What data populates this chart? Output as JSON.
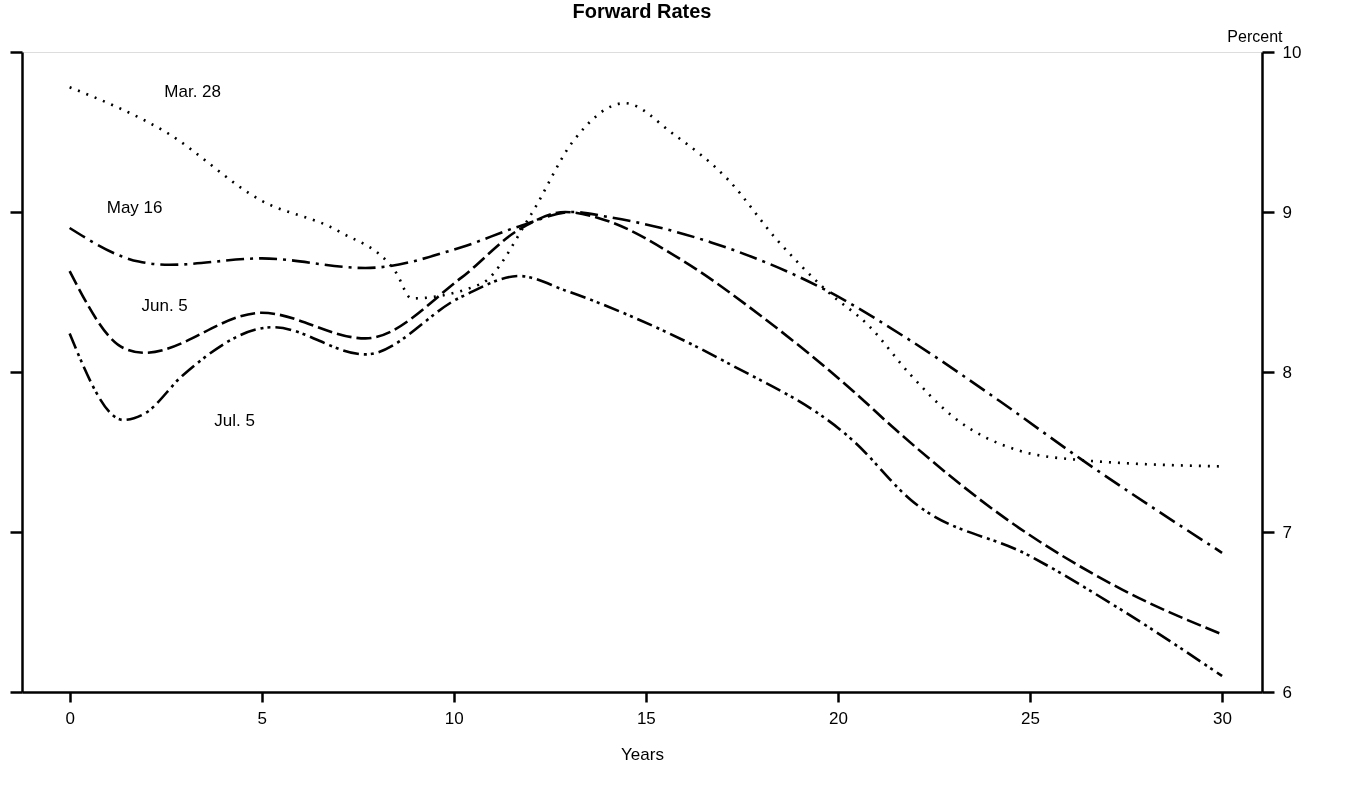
{
  "chart_data": {
    "type": "line",
    "title": "Forward Rates",
    "xlabel": "Years",
    "ylabel": "Percent",
    "xlim": [
      -1.24,
      31.04
    ],
    "xticks": [
      0,
      5,
      10,
      15,
      20,
      25,
      30
    ],
    "ylim": [
      6,
      10
    ],
    "yticks": [
      6,
      7,
      8,
      9,
      10
    ],
    "grid": false,
    "marker": "none",
    "tick_labels": "xy2",
    "series": [
      {
        "name": "Mar. 28",
        "color": "#000000",
        "line_style": "dotted",
        "x": [
          0,
          2.5,
          5,
          7,
          8.5,
          8.9,
          10.7,
          12.0,
          13.1,
          14.45,
          15.7,
          17.15,
          18.4,
          19.7,
          20.8,
          21.9,
          23.0,
          24.7,
          26.3,
          30
        ],
        "values": [
          9.78,
          9.5,
          9.07,
          8.88,
          8.62,
          8.46,
          8.55,
          8.98,
          9.44,
          9.68,
          9.49,
          9.2,
          8.83,
          8.51,
          8.29,
          7.98,
          7.72,
          7.51,
          7.45,
          7.41
        ]
      },
      {
        "name": "May 16",
        "color": "#000000",
        "line_style": "dashdot",
        "x": [
          0,
          1.8,
          2.6,
          5.0,
          7.7,
          10.2,
          11.7,
          13.1,
          14.0,
          16.7,
          19.7,
          21.8,
          24.2,
          26.3,
          30
        ],
        "values": [
          8.9,
          8.69,
          8.67,
          8.71,
          8.65,
          8.78,
          8.91,
          9.0,
          8.97,
          8.81,
          8.51,
          8.21,
          7.82,
          7.46,
          6.87
        ]
      },
      {
        "name": "Jun. 5",
        "color": "#000000",
        "line_style": "dashed",
        "x": [
          0,
          1.4,
          1.95,
          5.0,
          7.7,
          10.2,
          11.7,
          12.9,
          13.8,
          16.0,
          18.0,
          20.4,
          21.5,
          24.45,
          27.4,
          30
        ],
        "values": [
          8.63,
          8.15,
          8.12,
          8.37,
          8.21,
          8.59,
          8.89,
          9.0,
          8.96,
          8.69,
          8.35,
          7.88,
          7.64,
          7.07,
          6.64,
          6.36
        ]
      },
      {
        "name": "Jul. 5",
        "color": "#000000",
        "line_style": "dashdotdot",
        "x": [
          0,
          1.4,
          1.95,
          2.95,
          5.3,
          7.7,
          10.2,
          11.7,
          12.9,
          14.6,
          17.1,
          20.4,
          21.9,
          25.0,
          27.4,
          30
        ],
        "values": [
          8.24,
          7.7,
          7.74,
          7.98,
          8.28,
          8.11,
          8.47,
          8.6,
          8.51,
          8.35,
          8.06,
          7.57,
          7.2,
          6.85,
          6.51,
          6.1
        ]
      }
    ]
  }
}
